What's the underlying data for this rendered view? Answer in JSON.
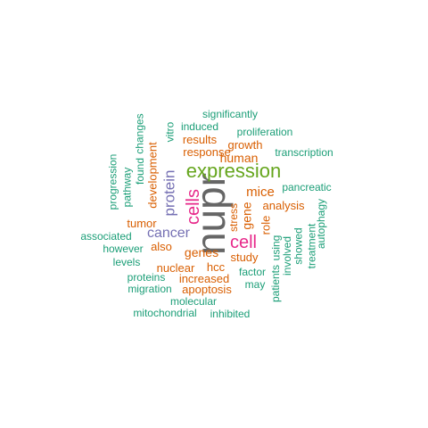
{
  "colors": {
    "teal": "#1B9E77",
    "orange": "#D95F02",
    "purple": "#7570B3",
    "magenta": "#E7298A",
    "green": "#66A61E",
    "gray": "#666666"
  },
  "words": [
    {
      "text": "nupr",
      "weight": 1.0,
      "color": "#666666",
      "vertical": true
    },
    {
      "text": "expression",
      "weight": 0.7,
      "color": "#66A61E",
      "vertical": false
    },
    {
      "text": "cell",
      "weight": 0.55,
      "color": "#E7298A",
      "vertical": false
    },
    {
      "text": "cells",
      "weight": 0.55,
      "color": "#E7298A",
      "vertical": true
    },
    {
      "text": "protein",
      "weight": 0.5,
      "color": "#7570B3",
      "vertical": true
    },
    {
      "text": "cancer",
      "weight": 0.45,
      "color": "#7570B3",
      "vertical": false
    },
    {
      "text": "mice",
      "weight": 0.4,
      "color": "#D95F02",
      "vertical": false
    },
    {
      "text": "human",
      "weight": 0.35,
      "color": "#D95F02",
      "vertical": false
    },
    {
      "text": "gene",
      "weight": 0.35,
      "color": "#D95F02",
      "vertical": true
    },
    {
      "text": "genes",
      "weight": 0.35,
      "color": "#D95F02",
      "vertical": false
    },
    {
      "text": "tumor",
      "weight": 0.3,
      "color": "#D95F02",
      "vertical": false
    },
    {
      "text": "development",
      "weight": 0.3,
      "color": "#D95F02",
      "vertical": true
    },
    {
      "text": "results",
      "weight": 0.3,
      "color": "#D95F02",
      "vertical": false
    },
    {
      "text": "growth",
      "weight": 0.3,
      "color": "#D95F02",
      "vertical": false
    },
    {
      "text": "response",
      "weight": 0.3,
      "color": "#D95F02",
      "vertical": false
    },
    {
      "text": "analysis",
      "weight": 0.3,
      "color": "#D95F02",
      "vertical": false
    },
    {
      "text": "role",
      "weight": 0.3,
      "color": "#D95F02",
      "vertical": true
    },
    {
      "text": "study",
      "weight": 0.3,
      "color": "#D95F02",
      "vertical": false
    },
    {
      "text": "hcc",
      "weight": 0.3,
      "color": "#D95F02",
      "vertical": false
    },
    {
      "text": "also",
      "weight": 0.3,
      "color": "#D95F02",
      "vertical": false
    },
    {
      "text": "nuclear",
      "weight": 0.3,
      "color": "#D95F02",
      "vertical": false
    },
    {
      "text": "increased",
      "weight": 0.3,
      "color": "#D95F02",
      "vertical": false
    },
    {
      "text": "apoptosis",
      "weight": 0.3,
      "color": "#D95F02",
      "vertical": false
    },
    {
      "text": "stress",
      "weight": 0.25,
      "color": "#D95F02",
      "vertical": true
    },
    {
      "text": "significantly",
      "weight": 0.2,
      "color": "#1B9E77",
      "vertical": false
    },
    {
      "text": "induced",
      "weight": 0.2,
      "color": "#1B9E77",
      "vertical": false
    },
    {
      "text": "vitro",
      "weight": 0.2,
      "color": "#1B9E77",
      "vertical": true
    },
    {
      "text": "changes",
      "weight": 0.2,
      "color": "#1B9E77",
      "vertical": true
    },
    {
      "text": "found",
      "weight": 0.2,
      "color": "#1B9E77",
      "vertical": true
    },
    {
      "text": "pathway",
      "weight": 0.2,
      "color": "#1B9E77",
      "vertical": true
    },
    {
      "text": "progression",
      "weight": 0.2,
      "color": "#1B9E77",
      "vertical": true
    },
    {
      "text": "proliferation",
      "weight": 0.2,
      "color": "#1B9E77",
      "vertical": false
    },
    {
      "text": "transcription",
      "weight": 0.2,
      "color": "#1B9E77",
      "vertical": false
    },
    {
      "text": "pancreatic",
      "weight": 0.2,
      "color": "#1B9E77",
      "vertical": false
    },
    {
      "text": "autophagy",
      "weight": 0.2,
      "color": "#1B9E77",
      "vertical": true
    },
    {
      "text": "treatment",
      "weight": 0.2,
      "color": "#1B9E77",
      "vertical": true
    },
    {
      "text": "showed",
      "weight": 0.2,
      "color": "#1B9E77",
      "vertical": true
    },
    {
      "text": "involved",
      "weight": 0.2,
      "color": "#1B9E77",
      "vertical": true
    },
    {
      "text": "using",
      "weight": 0.2,
      "color": "#1B9E77",
      "vertical": true
    },
    {
      "text": "patients",
      "weight": 0.2,
      "color": "#1B9E77",
      "vertical": true
    },
    {
      "text": "associated",
      "weight": 0.2,
      "color": "#1B9E77",
      "vertical": false
    },
    {
      "text": "however",
      "weight": 0.2,
      "color": "#1B9E77",
      "vertical": false
    },
    {
      "text": "levels",
      "weight": 0.2,
      "color": "#1B9E77",
      "vertical": false
    },
    {
      "text": "proteins",
      "weight": 0.2,
      "color": "#1B9E77",
      "vertical": false
    },
    {
      "text": "migration",
      "weight": 0.2,
      "color": "#1B9E77",
      "vertical": false
    },
    {
      "text": "factor",
      "weight": 0.2,
      "color": "#1B9E77",
      "vertical": false
    },
    {
      "text": "may",
      "weight": 0.2,
      "color": "#1B9E77",
      "vertical": false
    },
    {
      "text": "molecular",
      "weight": 0.2,
      "color": "#1B9E77",
      "vertical": false
    },
    {
      "text": "mitochondrial",
      "weight": 0.2,
      "color": "#1B9E77",
      "vertical": false
    },
    {
      "text": "inhibited",
      "weight": 0.2,
      "color": "#1B9E77",
      "vertical": false
    }
  ]
}
